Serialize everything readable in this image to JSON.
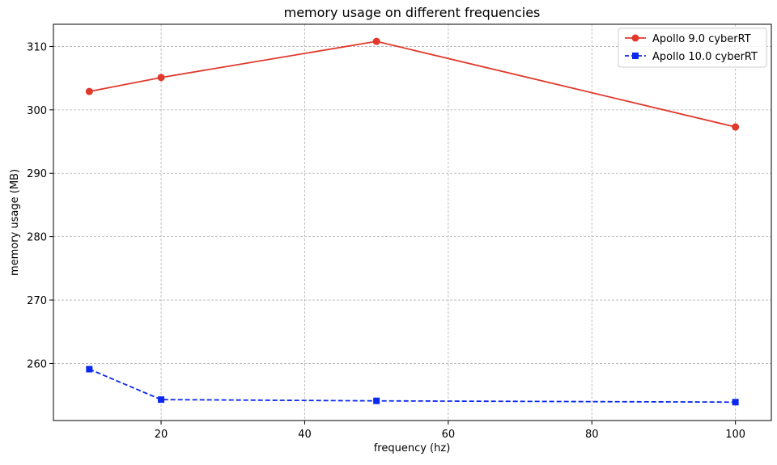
{
  "chart_data": {
    "type": "line",
    "title": "memory usage on different frequencies",
    "xlabel": "frequency (hz)",
    "ylabel": "memory usage (MB)",
    "xlim": [
      5,
      105
    ],
    "ylim": [
      251,
      313.5
    ],
    "x_ticks": [
      20,
      40,
      60,
      80,
      100
    ],
    "y_ticks": [
      260,
      270,
      280,
      290,
      300,
      310
    ],
    "grid": true,
    "legend_position": "top-right",
    "series": [
      {
        "name": "Apollo 9.0 cyberRT",
        "color": "#e0382b",
        "line_style": "solid",
        "marker": "circle",
        "x": [
          10,
          20,
          50,
          100
        ],
        "y": [
          302.9,
          305.1,
          310.8,
          297.3
        ]
      },
      {
        "name": "Apollo 10.0 cyberRT",
        "color": "#0a28f0",
        "line_style": "dashed",
        "marker": "square",
        "x": [
          10,
          20,
          50,
          100
        ],
        "y": [
          259.1,
          254.3,
          254.1,
          253.9
        ]
      }
    ]
  }
}
